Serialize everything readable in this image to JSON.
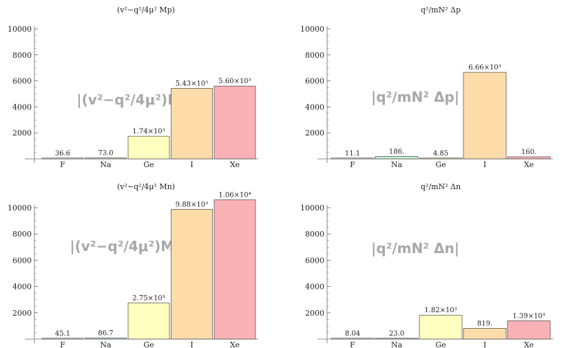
{
  "colors": {
    "F": "#ffffff",
    "Na": "#c9f0d2",
    "Ge": "#ffffc0",
    "I": "#fddcaa",
    "Xe": "#fbb2b7",
    "bar_stroke": "#444444",
    "axis": "#666666",
    "watermark": "#a8a8a8"
  },
  "chart_data": [
    {
      "type": "bar",
      "title": "(v²−q²/4μ² Mp)",
      "watermark": "|(v²−q²/4μ²)Mp|",
      "categories": [
        "F",
        "Na",
        "Ge",
        "I",
        "Xe"
      ],
      "values": [
        36.6,
        73.0,
        1740,
        5430,
        5600
      ],
      "value_labels": [
        "36.6",
        "73.0",
        "1.74×10³",
        "5.43×10³",
        "5.60×10³"
      ],
      "ylim": [
        0,
        10000
      ],
      "yticks": [
        "2000",
        "4000",
        "6000",
        "8000",
        "10000"
      ]
    },
    {
      "type": "bar",
      "title": "q²/mN² Δp",
      "watermark": "|q²/mN² Δp|",
      "categories": [
        "F",
        "Na",
        "Ge",
        "I",
        "Xe"
      ],
      "values": [
        11.1,
        186,
        4.85,
        6660,
        160
      ],
      "value_labels": [
        "11.1",
        "186.",
        "4.85",
        "6.66×10³",
        "160."
      ],
      "ylim": [
        0,
        10000
      ],
      "yticks": [
        "2000",
        "4000",
        "6000",
        "8000",
        "10000"
      ]
    },
    {
      "type": "bar",
      "title": "(v²−q²/4μ² Mn)",
      "watermark": "|(v²−q²/4μ²)Mn|",
      "categories": [
        "F",
        "Na",
        "Ge",
        "I",
        "Xe"
      ],
      "values": [
        45.1,
        86.7,
        2750,
        9880,
        10600
      ],
      "value_labels": [
        "45.1",
        "86.7",
        "2.75×10³",
        "9.88×10³",
        "1.06×10⁴"
      ],
      "ylim": [
        0,
        10000
      ],
      "yticks": [
        "2000",
        "4000",
        "6000",
        "8000",
        "10000"
      ]
    },
    {
      "type": "bar",
      "title": "q²/mN² Δn",
      "watermark": "|q²/mN² Δn|",
      "categories": [
        "F",
        "Na",
        "Ge",
        "I",
        "Xe"
      ],
      "values": [
        8.04,
        23.0,
        1820,
        819,
        1390
      ],
      "value_labels": [
        "8.04",
        "23.0",
        "1.82×10³",
        "819.",
        "1.39×10³"
      ],
      "ylim": [
        0,
        10000
      ],
      "yticks": [
        "2000",
        "4000",
        "6000",
        "8000",
        "10000"
      ]
    }
  ]
}
